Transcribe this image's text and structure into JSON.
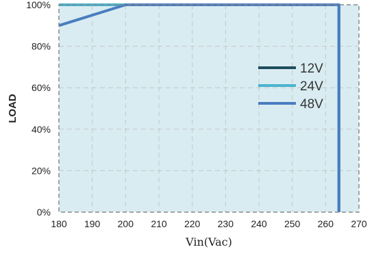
{
  "chart_data": {
    "type": "line",
    "xlabel": "Vin(Vac)",
    "ylabel": "LOAD",
    "xlim": [
      180,
      270
    ],
    "ylim": [
      0,
      100
    ],
    "x_ticks": [
      180,
      190,
      200,
      210,
      220,
      230,
      240,
      250,
      260,
      270
    ],
    "x_tick_labels": [
      "180",
      "190",
      "200",
      "210",
      "220",
      "230",
      "240",
      "250",
      "260",
      "270"
    ],
    "y_ticks": [
      0,
      20,
      40,
      60,
      80,
      100
    ],
    "y_tick_labels": [
      "0%",
      "20%",
      "40%",
      "60%",
      "80%",
      "100%"
    ],
    "grid": true,
    "legend_position": "right",
    "colors": {
      "plot_background": "#d9ecf2",
      "grid": "#c6c6c6",
      "frame": "#8a8a8a"
    },
    "series": [
      {
        "name": "12V",
        "color": "#1e4d5e",
        "points": [
          [
            180,
            100
          ],
          [
            200,
            100
          ],
          [
            264,
            100
          ],
          [
            264,
            0
          ]
        ]
      },
      {
        "name": "24V",
        "color": "#4ab3cf",
        "points": [
          [
            180,
            100
          ],
          [
            200,
            100
          ],
          [
            264,
            100
          ],
          [
            264,
            0
          ]
        ]
      },
      {
        "name": "48V",
        "color": "#4a7dc0",
        "points": [
          [
            180,
            90
          ],
          [
            200,
            100
          ],
          [
            264,
            100
          ],
          [
            264,
            0
          ]
        ]
      }
    ]
  }
}
